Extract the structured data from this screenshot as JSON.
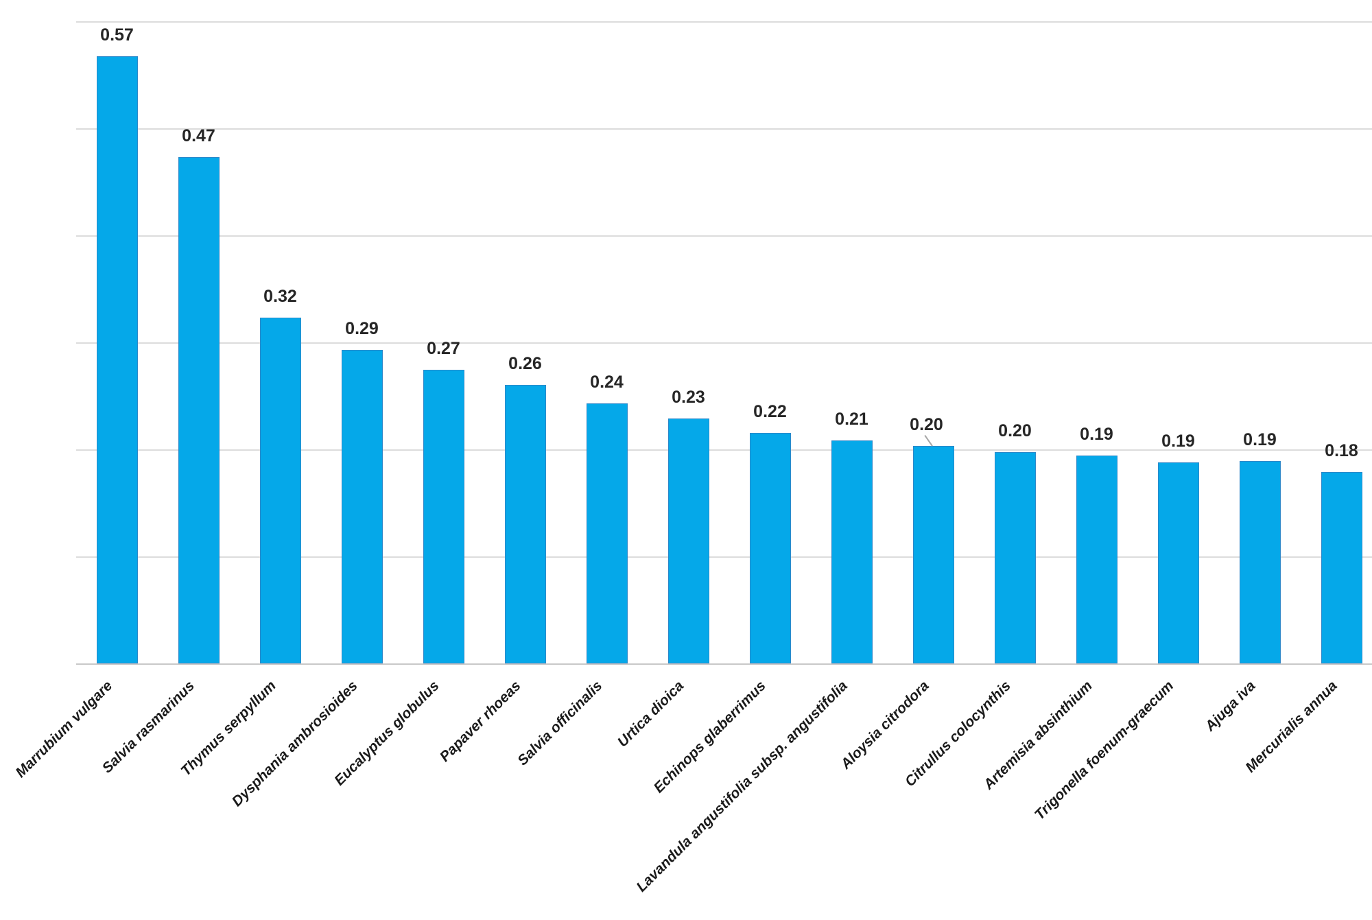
{
  "chart_data": {
    "type": "bar",
    "title": "",
    "xlabel": "",
    "ylabel": "",
    "categories": [
      "Marrubium vulgare",
      "Salvia rasmarinus",
      "Thymus serpyllum",
      "Dysphania ambrosioides",
      "Eucalyptus globulus",
      "Papaver rhoeas",
      "Salvia officinalis",
      "Urtica dioica",
      "Echinops glaberrimus",
      "Lavandula angustifolia subsp. angustifolia",
      "Aloysia citrodora",
      "Citrullus colocynthis",
      "Artemisia absinthium",
      "Trigonella foenum-graecum",
      "Ajuga iva",
      "Mercurialis annua"
    ],
    "values": [
      0.57,
      0.47,
      0.32,
      0.29,
      0.27,
      0.26,
      0.24,
      0.23,
      0.22,
      0.21,
      0.2,
      0.2,
      0.19,
      0.19,
      0.19,
      0.18
    ],
    "labels": [
      "0.57",
      "0.47",
      "0.32",
      "0.29",
      "0.27",
      "0.26",
      "0.24",
      "0.23",
      "0.22",
      "0.21",
      "0.20",
      "0.20",
      "0.19",
      "0.19",
      "0.19",
      "0.18"
    ],
    "values_precise": [
      0.567,
      0.473,
      0.323,
      0.293,
      0.274,
      0.26,
      0.243,
      0.229,
      0.215,
      0.208,
      0.203,
      0.197,
      0.194,
      0.188,
      0.189,
      0.179
    ],
    "ylim": [
      0,
      0.6
    ],
    "gridline_step": 0.1,
    "grid_on": true,
    "legend": "none",
    "y_axis_tick_labels_visible": false,
    "bar_color": "#05a8e9",
    "bar_border_color": "#2c88c9",
    "gridline_color": "#dcdcdc",
    "value_label_color": "#262626",
    "category_label_color": "#1a1a1a",
    "moved_label": {
      "index": 10,
      "dx": -10,
      "has_leader_line": true
    }
  }
}
